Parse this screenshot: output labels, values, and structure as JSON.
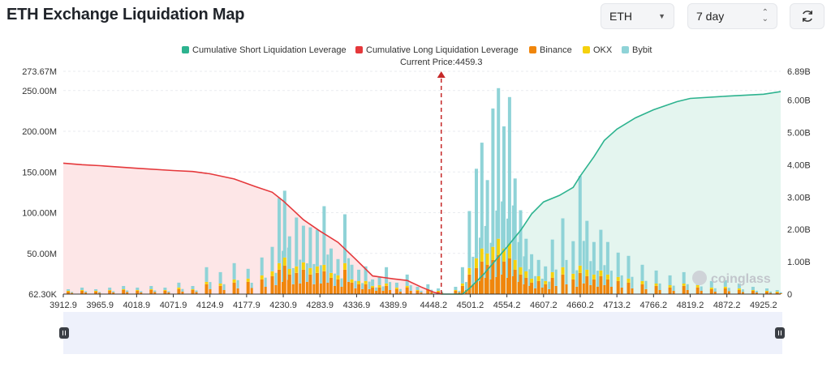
{
  "header": {
    "title": "ETH Exchange Liquidation Map",
    "coin_select": "ETH",
    "range_select": "7 day",
    "refresh_icon": "refresh-icon"
  },
  "chart_data": {
    "type": "bar",
    "title": "",
    "legend": [
      {
        "name": "Cumulative Short Liquidation Leverage",
        "color": "#2db38f"
      },
      {
        "name": "Cumulative Long Liquidation Leverage",
        "color": "#e5383b"
      },
      {
        "name": "Binance",
        "color": "#f0860c"
      },
      {
        "name": "OKX",
        "color": "#f5d10e"
      },
      {
        "name": "Bybit",
        "color": "#8fd3d7"
      }
    ],
    "legend_position": "top-center",
    "current_price_label": "Current Price:4459.3",
    "current_price": 4459.3,
    "x_ticks": [
      "3912.9",
      "3965.9",
      "4018.9",
      "4071.9",
      "4124.9",
      "4177.9",
      "4230.9",
      "4283.9",
      "4336.9",
      "4389.9",
      "4448.2",
      "4501.2",
      "4554.2",
      "4607.2",
      "4660.2",
      "4713.2",
      "4766.2",
      "4819.2",
      "4872.2",
      "4925.2"
    ],
    "xlim": [
      3912.9,
      4950
    ],
    "y_left_ticks": [
      "62.30K",
      "50.00M",
      "100.00M",
      "150.00M",
      "200.00M",
      "250.00M",
      "273.67M"
    ],
    "y_left_tick_values": [
      0.0623,
      50,
      100,
      150,
      200,
      250,
      273.67
    ],
    "ylim_left": [
      0,
      273.67
    ],
    "y_right_ticks": [
      "0",
      "1.00B",
      "2.00B",
      "3.00B",
      "4.00B",
      "5.00B",
      "6.00B",
      "6.89B"
    ],
    "y_right_tick_values": [
      0,
      1,
      2,
      3,
      4,
      5,
      6,
      6.89
    ],
    "ylim_right": [
      0,
      6.89
    ],
    "grid": true,
    "watermark": "coinglass",
    "cumulative_long": {
      "name": "Cumulative Long Liquidation Leverage",
      "x": [
        3912.9,
        3940,
        3965.9,
        4018.9,
        4071.9,
        4100,
        4124.9,
        4160,
        4190,
        4215,
        4230.9,
        4245,
        4260,
        4283.9,
        4310,
        4336.9,
        4360,
        4380,
        4389.9,
        4410,
        4430,
        4448.2,
        4459.3
      ],
      "values_B": [
        4.05,
        4.0,
        3.97,
        3.89,
        3.82,
        3.79,
        3.72,
        3.56,
        3.33,
        3.15,
        2.88,
        2.6,
        2.3,
        1.95,
        1.6,
        1.05,
        0.56,
        0.5,
        0.47,
        0.42,
        0.22,
        0.06,
        0.0
      ]
    },
    "cumulative_short": {
      "name": "Cumulative Short Liquidation Leverage",
      "x": [
        4459.3,
        4490,
        4501.2,
        4520,
        4540,
        4554.2,
        4575,
        4590,
        4607.2,
        4630,
        4650,
        4660.2,
        4680,
        4695,
        4713.2,
        4740,
        4766.2,
        4800,
        4819.2,
        4872.2,
        4925.2,
        4950
      ],
      "values_B": [
        0.0,
        0.0,
        0.2,
        0.6,
        1.1,
        1.45,
        2.0,
        2.48,
        2.85,
        3.05,
        3.3,
        3.65,
        4.25,
        4.75,
        5.1,
        5.45,
        5.7,
        5.95,
        6.05,
        6.12,
        6.18,
        6.26
      ]
    },
    "exchange_bars": {
      "note": "stacked bars per price level (Binance, OKX, Bybit), values in M",
      "x": [
        3920,
        3940,
        3960,
        3980,
        4000,
        4020,
        4040,
        4060,
        4080,
        4100,
        4120,
        4140,
        4160,
        4180,
        4200,
        4215,
        4225,
        4233,
        4240,
        4250,
        4260,
        4270,
        4280,
        4290,
        4300,
        4310,
        4320,
        4330,
        4340,
        4350,
        4360,
        4370,
        4380,
        4395,
        4410,
        4425,
        4440,
        4455,
        4480,
        4490,
        4500,
        4510,
        4518,
        4526,
        4534,
        4542,
        4550,
        4558,
        4566,
        4574,
        4582,
        4590,
        4600,
        4610,
        4620,
        4635,
        4650,
        4660,
        4670,
        4680,
        4690,
        4700,
        4715,
        4730,
        4750,
        4770,
        4790,
        4810,
        4830,
        4850,
        4870,
        4890,
        4910,
        4930,
        4945
      ],
      "binance": [
        3,
        4,
        3,
        4,
        5,
        4,
        5,
        4,
        6,
        5,
        12,
        10,
        14,
        15,
        18,
        22,
        30,
        35,
        24,
        26,
        30,
        24,
        26,
        28,
        20,
        18,
        30,
        14,
        12,
        12,
        8,
        8,
        10,
        6,
        8,
        4,
        5,
        3,
        4,
        10,
        24,
        32,
        40,
        36,
        42,
        48,
        40,
        44,
        30,
        24,
        20,
        14,
        16,
        12,
        20,
        24,
        18,
        26,
        22,
        18,
        22,
        18,
        16,
        14,
        12,
        10,
        8,
        10,
        8,
        6,
        7,
        5,
        4,
        3,
        2
      ],
      "okx": [
        1,
        1,
        1,
        1,
        1,
        1,
        1,
        1,
        2,
        1,
        3,
        3,
        4,
        4,
        5,
        6,
        8,
        10,
        7,
        8,
        9,
        8,
        8,
        8,
        6,
        5,
        8,
        4,
        4,
        4,
        2,
        3,
        3,
        2,
        2,
        1,
        1,
        1,
        1,
        3,
        8,
        12,
        16,
        14,
        16,
        20,
        16,
        18,
        12,
        9,
        8,
        5,
        6,
        4,
        7,
        9,
        7,
        9,
        8,
        6,
        7,
        6,
        5,
        5,
        4,
        3,
        3,
        3,
        3,
        2,
        2,
        2,
        1,
        1,
        1
      ],
      "bybit": [
        2,
        3,
        2,
        3,
        4,
        3,
        4,
        3,
        6,
        4,
        18,
        14,
        20,
        12,
        22,
        30,
        80,
        82,
        40,
        60,
        45,
        50,
        45,
        72,
        30,
        20,
        60,
        18,
        14,
        18,
        8,
        10,
        20,
        6,
        14,
        4,
        6,
        3,
        4,
        20,
        70,
        110,
        130,
        90,
        170,
        185,
        150,
        180,
        100,
        70,
        40,
        30,
        20,
        18,
        40,
        60,
        40,
        110,
        60,
        40,
        50,
        40,
        30,
        28,
        20,
        16,
        12,
        14,
        10,
        8,
        8,
        6,
        4,
        3,
        2
      ]
    }
  }
}
